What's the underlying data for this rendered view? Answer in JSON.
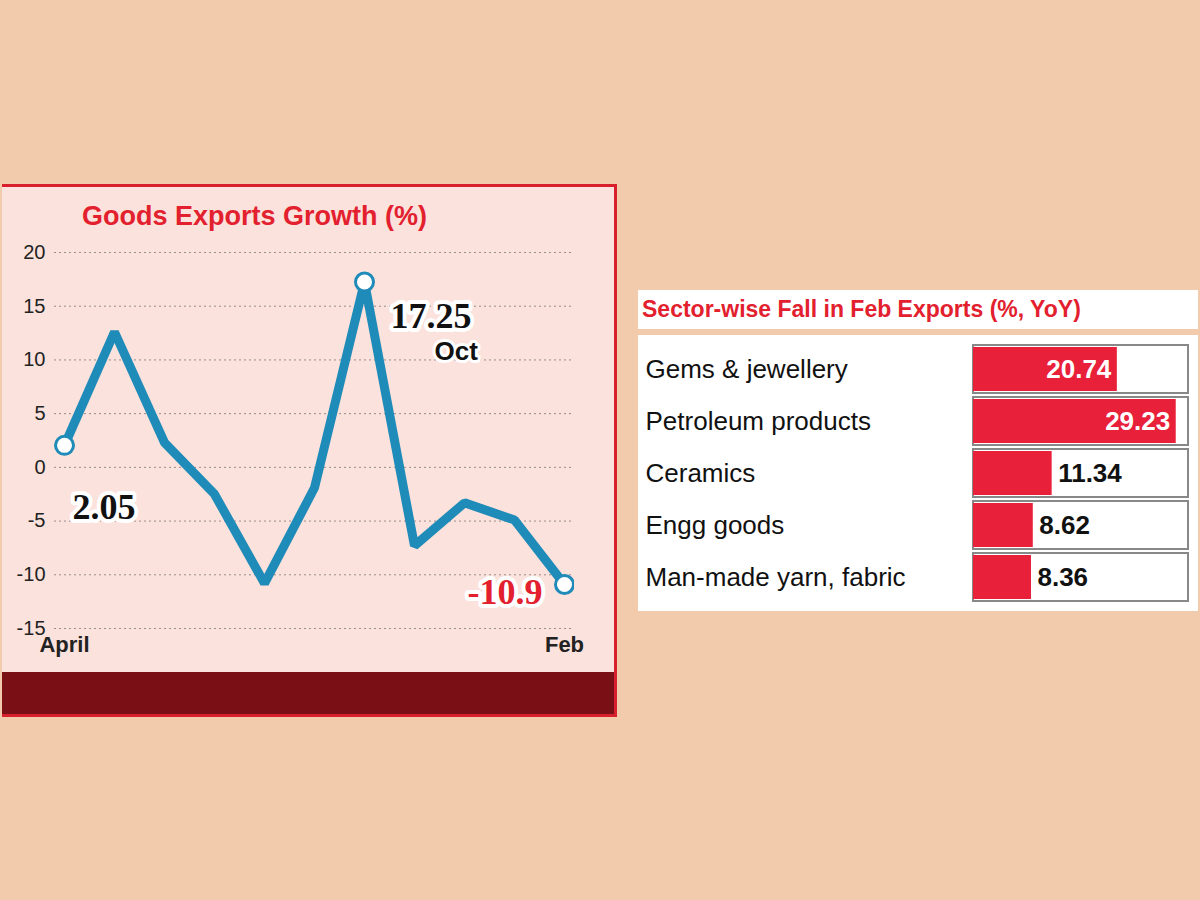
{
  "chart_data": [
    {
      "type": "line",
      "title": "Goods Exports Growth (%)",
      "categories": [
        "April",
        null,
        null,
        null,
        null,
        null,
        null,
        null,
        null,
        null,
        "Feb"
      ],
      "values": [
        2.05,
        12.6,
        2.3,
        -2.5,
        -10.8,
        -1.9,
        17.25,
        -7.3,
        -3.3,
        -4.9,
        -10.9
      ],
      "value_labels": [
        "2.05",
        null,
        null,
        null,
        null,
        null,
        "17.25",
        null,
        null,
        null,
        "-10.9"
      ],
      "annotations": [
        {
          "x": 6,
          "text": "Oct"
        }
      ],
      "color": "#1f8bb8",
      "ylim": [
        -15,
        20
      ],
      "yticks": [
        -15,
        -10,
        -5,
        0,
        5,
        10,
        15,
        20
      ],
      "grid": true
    },
    {
      "type": "bar",
      "orientation": "horizontal",
      "title": "Sector-wise Fall in Feb Exports (%, YoY)",
      "categories": [
        "Gems & jewellery",
        "Petroleum products",
        "Ceramics",
        "Engg goods",
        "Man-made yarn, fabric"
      ],
      "values": [
        20.74,
        29.23,
        11.34,
        8.62,
        8.36
      ],
      "color": "#e8203a",
      "xlim": [
        0,
        31
      ],
      "data_labels": true,
      "tick_labels": "y"
    }
  ]
}
